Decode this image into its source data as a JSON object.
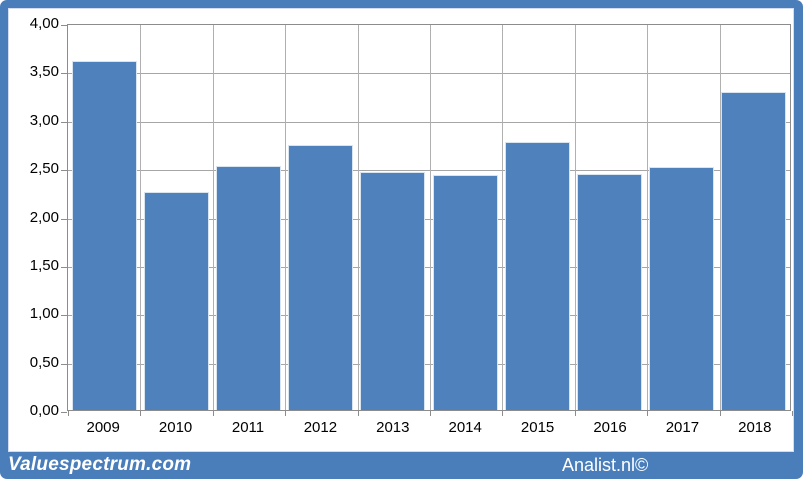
{
  "chart_data": {
    "type": "bar",
    "title": "",
    "xlabel": "",
    "ylabel": "",
    "categories": [
      "2009",
      "2010",
      "2011",
      "2012",
      "2013",
      "2014",
      "2015",
      "2016",
      "2017",
      "2018"
    ],
    "values": [
      3.63,
      2.27,
      2.54,
      2.75,
      2.47,
      2.44,
      2.78,
      2.45,
      2.53,
      3.3
    ],
    "ylim": [
      0,
      4
    ],
    "ytick_values": [
      4.0,
      3.5,
      3.0,
      2.5,
      2.0,
      1.5,
      1.0,
      0.5,
      0.0
    ],
    "ytick_labels": [
      "4,00",
      "3,50",
      "3,00",
      "2,50",
      "2,00",
      "1,50",
      "1,00",
      "0,50",
      "0,00"
    ],
    "decimal_style": "comma",
    "grid": true,
    "legend": "none",
    "bar_color": "#4f81bd",
    "bar_edge_color": "#d9e4f1",
    "gridline_color": "#a6a6a6",
    "axis_color": "#8c8c8c",
    "frame_color": "#4a7ebb"
  },
  "footer": {
    "left_brand": "Valuespectrum.com",
    "right_brand": "Analist.nl©"
  }
}
